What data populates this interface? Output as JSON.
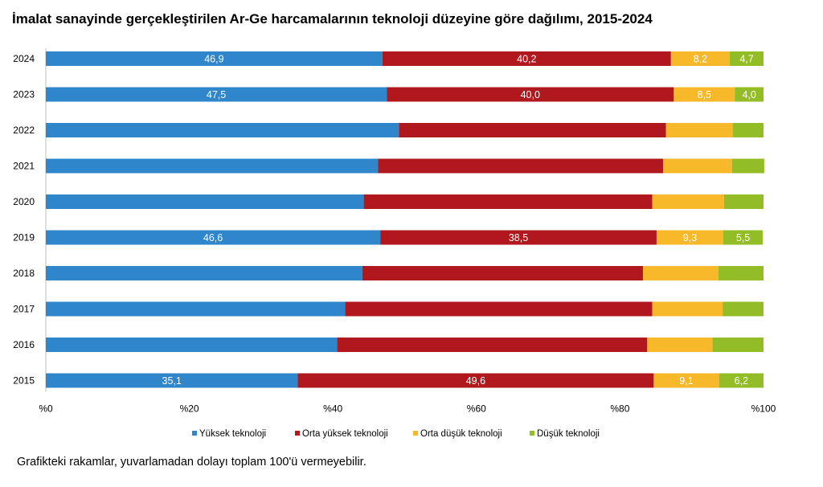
{
  "title": "İmalat sanayinde gerçekleştirilen Ar-Ge harcamalarının teknoloji düzeyine göre dağılımı, 2015-2024",
  "footnote": "Grafikteki rakamlar, yuvarlamadan dolayı toplam 100'ü vermeyebilir.",
  "colors": {
    "Yüksek teknoloji": "#2f86cb",
    "Orta yüksek teknoloji": "#b1181d",
    "Orta düşük teknoloji": "#f7b92a",
    "Düşük teknoloji": "#93bd27"
  },
  "chart_data": {
    "type": "bar",
    "orientation": "horizontal",
    "stacked": true,
    "categories": [
      "2024",
      "2023",
      "2022",
      "2021",
      "2020",
      "2019",
      "2018",
      "2017",
      "2016",
      "2015"
    ],
    "series": [
      {
        "name": "Yüksek teknoloji",
        "values": [
          46.9,
          47.5,
          49.2,
          46.3,
          44.3,
          46.6,
          44.1,
          41.7,
          40.6,
          35.1
        ],
        "labels": [
          "46,9",
          "47,5",
          null,
          null,
          null,
          "46,6",
          null,
          null,
          null,
          "35,1"
        ]
      },
      {
        "name": "Orta yüksek teknoloji",
        "values": [
          40.2,
          40.0,
          37.2,
          39.7,
          40.2,
          38.5,
          39.1,
          42.8,
          43.2,
          49.6
        ],
        "labels": [
          "40,2",
          "40,0",
          null,
          null,
          null,
          "38,5",
          null,
          null,
          null,
          "49,6"
        ]
      },
      {
        "name": "Orta düşük teknoloji",
        "values": [
          8.2,
          8.5,
          9.3,
          9.6,
          10.0,
          9.3,
          10.5,
          9.8,
          9.1,
          9.1
        ],
        "labels": [
          "8,2",
          "8,5",
          null,
          null,
          null,
          "9,3",
          null,
          null,
          null,
          "9,1"
        ]
      },
      {
        "name": "Düşük teknoloji",
        "values": [
          4.7,
          4.0,
          4.3,
          4.5,
          5.5,
          5.5,
          6.3,
          5.7,
          7.1,
          6.2
        ],
        "labels": [
          "4,7",
          "4,0",
          null,
          null,
          null,
          "5,5",
          null,
          null,
          null,
          "6,2"
        ]
      }
    ],
    "xlim": [
      0,
      100
    ],
    "xticks": [
      "%0",
      "%20",
      "%40",
      "%60",
      "%80",
      "%100"
    ],
    "legend_position": "bottom",
    "grid": false
  }
}
